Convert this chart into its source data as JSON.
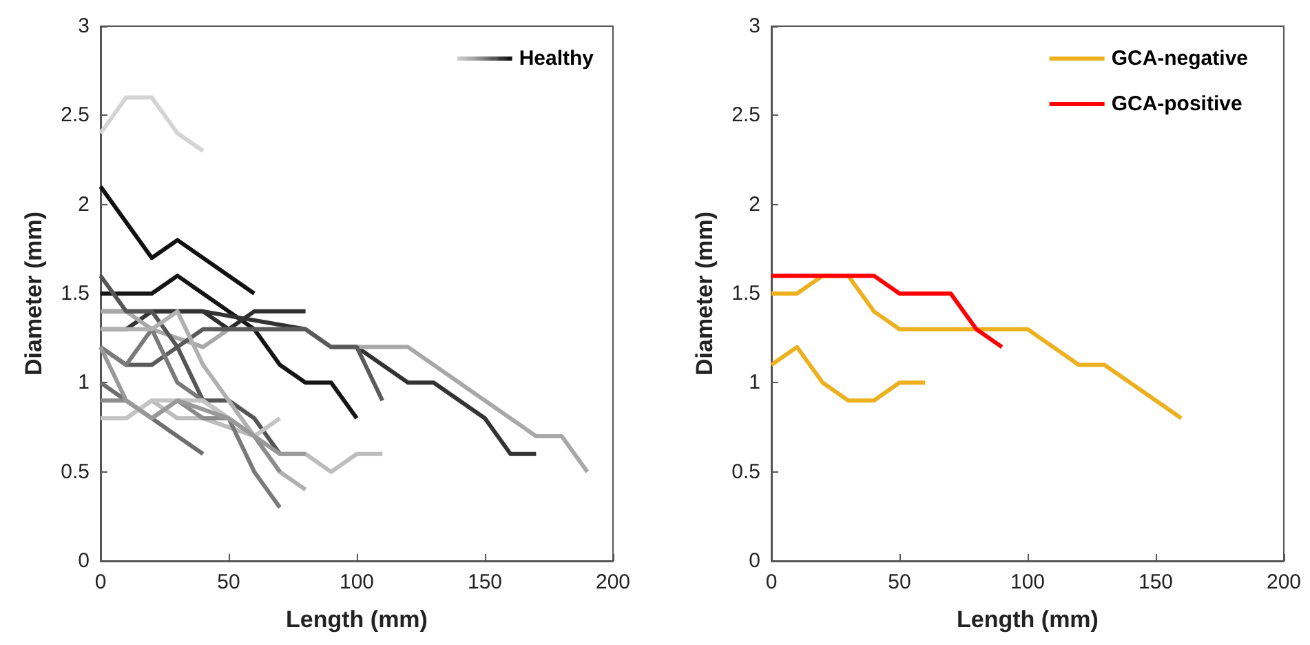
{
  "chart_data": [
    {
      "type": "line",
      "xlabel": "Length (mm)",
      "ylabel": "Diameter (mm)",
      "xlim": [
        0,
        200
      ],
      "xticks": [
        0,
        50,
        100,
        150,
        200
      ],
      "ylim": [
        0,
        3
      ],
      "yticks": [
        0,
        0.5,
        1,
        1.5,
        2,
        2.5,
        3
      ],
      "grid": false,
      "legend": "top right",
      "marker": "none",
      "line_style": "solid",
      "series": [
        {
          "name": "Healthy",
          "color": "#d4d4d4",
          "x": [
            0,
            10,
            20,
            30,
            40
          ],
          "values": [
            2.4,
            2.6,
            2.6,
            2.4,
            2.3
          ]
        },
        {
          "color": "#111111",
          "x": [
            0,
            10,
            20,
            30,
            60
          ],
          "values": [
            2.1,
            1.9,
            1.7,
            1.8,
            1.5
          ]
        },
        {
          "color": "#151515",
          "x": [
            0,
            20,
            30,
            40,
            50,
            60,
            70,
            80,
            90,
            100
          ],
          "values": [
            1.5,
            1.5,
            1.6,
            1.5,
            1.4,
            1.3,
            1.1,
            1.0,
            1.0,
            0.8
          ]
        },
        {
          "color": "#2e2e2e",
          "x": [
            0,
            40,
            50,
            60,
            80
          ],
          "values": [
            1.4,
            1.4,
            1.3,
            1.4,
            1.4
          ]
        },
        {
          "color": "#333333",
          "x": [
            0,
            10,
            20,
            40,
            80,
            90,
            100,
            120,
            130,
            150,
            160,
            170
          ],
          "values": [
            1.3,
            1.3,
            1.4,
            1.4,
            1.3,
            1.2,
            1.2,
            1.0,
            1.0,
            0.8,
            0.6,
            0.6
          ]
        },
        {
          "color": "#a8a8a8",
          "x": [
            0,
            10,
            20,
            40,
            50,
            80,
            90,
            120,
            150,
            170,
            180,
            190
          ],
          "values": [
            1.4,
            1.4,
            1.3,
            1.2,
            1.3,
            1.3,
            1.2,
            1.2,
            0.9,
            0.7,
            0.7,
            0.5
          ]
        },
        {
          "color": "#5a5a5a",
          "x": [
            0,
            10,
            20,
            40,
            80,
            90,
            100,
            110
          ],
          "values": [
            1.2,
            1.1,
            1.1,
            1.3,
            1.3,
            1.2,
            1.2,
            0.9
          ]
        },
        {
          "color": "#bdbdbd",
          "x": [
            0,
            10,
            20,
            30,
            40,
            60,
            70,
            80,
            90,
            100,
            110
          ],
          "values": [
            0.8,
            0.8,
            0.9,
            0.8,
            0.8,
            0.7,
            0.6,
            0.6,
            0.5,
            0.6,
            0.6
          ]
        },
        {
          "color": "#555555",
          "x": [
            0,
            10,
            20,
            30,
            40,
            50,
            60,
            70
          ],
          "values": [
            1.6,
            1.4,
            1.4,
            1.2,
            0.9,
            0.9,
            0.8,
            0.6
          ]
        },
        {
          "color": "#6e6e6e",
          "x": [
            0,
            10,
            20,
            30,
            40
          ],
          "values": [
            1.0,
            0.9,
            0.8,
            0.7,
            0.6
          ]
        },
        {
          "color": "#7a7a7a",
          "x": [
            0,
            10,
            20,
            30,
            40,
            50,
            60,
            70
          ],
          "values": [
            1.2,
            1.1,
            1.3,
            1.0,
            0.9,
            0.8,
            0.5,
            0.3
          ]
        },
        {
          "color": "#b0b0b0",
          "x": [
            0,
            10,
            20,
            30,
            40,
            50,
            60,
            70,
            80
          ],
          "values": [
            1.3,
            1.3,
            1.3,
            1.4,
            1.1,
            0.9,
            0.7,
            0.5,
            0.4
          ]
        },
        {
          "color": "#8c8c8c",
          "x": [
            0,
            10,
            20,
            30,
            40,
            50,
            60,
            70
          ],
          "values": [
            0.9,
            0.9,
            0.8,
            0.9,
            0.8,
            0.8,
            0.7,
            0.5
          ]
        },
        {
          "color": "#c4c4c4",
          "x": [
            0,
            10,
            20,
            30,
            40,
            50,
            60,
            70
          ],
          "values": [
            0.8,
            0.8,
            0.9,
            0.9,
            0.9,
            0.8,
            0.7,
            0.8
          ]
        },
        {
          "color": "#999999",
          "x": [
            0,
            10,
            20,
            30,
            50,
            60,
            70,
            80
          ],
          "values": [
            1.2,
            0.9,
            0.8,
            0.9,
            0.8,
            0.7,
            0.6,
            0.6
          ]
        }
      ]
    },
    {
      "type": "line",
      "xlabel": "Length (mm)",
      "ylabel": "Diameter (mm)",
      "xlim": [
        0,
        200
      ],
      "xticks": [
        0,
        50,
        100,
        150,
        200
      ],
      "ylim": [
        0,
        3
      ],
      "yticks": [
        0,
        0.5,
        1,
        1.5,
        2,
        2.5,
        3
      ],
      "grid": false,
      "legend": "top right",
      "marker": "none",
      "line_style": "solid",
      "series": [
        {
          "name": "GCA-negative",
          "color": "#edb120",
          "x": [
            0,
            10,
            20,
            30,
            40,
            50,
            100,
            120,
            130,
            160
          ],
          "values": [
            1.5,
            1.5,
            1.6,
            1.6,
            1.4,
            1.3,
            1.3,
            1.1,
            1.1,
            0.8
          ]
        },
        {
          "color": "#edb120",
          "x": [
            0,
            10,
            20,
            30,
            40,
            50,
            60
          ],
          "values": [
            1.1,
            1.2,
            1.0,
            0.9,
            0.9,
            1.0,
            1.0
          ]
        },
        {
          "name": "GCA-positive",
          "color": "#ff0000",
          "x": [
            0,
            40,
            50,
            70,
            80,
            90
          ],
          "values": [
            1.6,
            1.6,
            1.5,
            1.5,
            1.3,
            1.2
          ]
        }
      ]
    }
  ]
}
